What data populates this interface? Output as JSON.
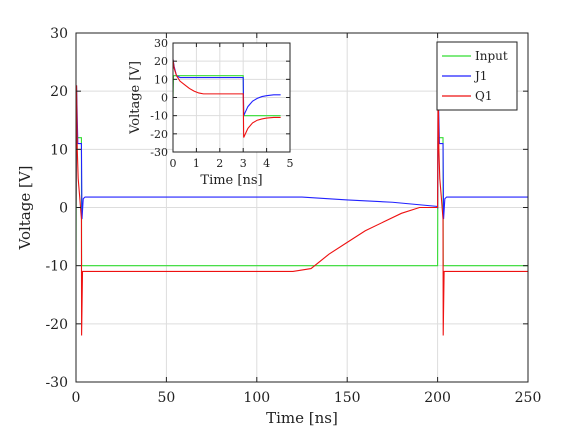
{
  "chart_data": [
    {
      "type": "line",
      "xlabel": "Time [ns]",
      "ylabel": "Voltage [V]",
      "xlim": [
        0,
        250
      ],
      "ylim": [
        -30,
        30
      ],
      "xticks": [
        0,
        50,
        100,
        150,
        200,
        250
      ],
      "yticks": [
        -30,
        -20,
        -10,
        0,
        10,
        20,
        30
      ],
      "grid": true,
      "legend_position": "top-right",
      "series": [
        {
          "name": "Input",
          "color": "#33dd33",
          "x": [
            0,
            0.2,
            3,
            3.1,
            200,
            200.2,
            203,
            203.1,
            250
          ],
          "y": [
            -10,
            12,
            12,
            -10,
            -10,
            12,
            12,
            -10,
            -10
          ]
        },
        {
          "name": "J1",
          "color": "#2222ff",
          "x": [
            0,
            0.3,
            1,
            2,
            3,
            3.3,
            4,
            5,
            100,
            125,
            150,
            175,
            199.5,
            200,
            200.3,
            201,
            202,
            203,
            203.3,
            204,
            205,
            250
          ],
          "y": [
            0,
            21,
            11,
            11,
            11,
            -2,
            1.5,
            1.8,
            1.8,
            1.8,
            1.3,
            0.9,
            0.2,
            0,
            21,
            11,
            11,
            11,
            -2,
            1.5,
            1.8,
            1.8
          ]
        },
        {
          "name": "Q1",
          "color": "#ee1111",
          "x": [
            0,
            0.3,
            0.7,
            1.2,
            2,
            3,
            3.1,
            3.6,
            5,
            50,
            100,
            120,
            130,
            140,
            150,
            160,
            170,
            180,
            190,
            200,
            200.3,
            200.7,
            201.2,
            202,
            203,
            203.1,
            203.6,
            205,
            250
          ],
          "y": [
            0,
            21,
            10,
            5,
            2,
            -2,
            -22,
            -11,
            -11,
            -11,
            -11,
            -11,
            -10.5,
            -8,
            -6,
            -4,
            -2.5,
            -1,
            0,
            0,
            21,
            10,
            5,
            2,
            -2,
            -22,
            -11,
            -11,
            -11
          ]
        }
      ]
    },
    {
      "type": "line",
      "xlabel": "Time [ns]",
      "ylabel": "Voltage [V]",
      "xlim": [
        0,
        5
      ],
      "ylim": [
        -30,
        30
      ],
      "xticks": [
        0,
        1,
        2,
        3,
        4,
        5
      ],
      "yticks": [
        -30,
        -20,
        -10,
        0,
        10,
        20,
        30
      ],
      "grid": true,
      "series": [
        {
          "name": "Input",
          "color": "#33dd33",
          "x": [
            0,
            0.02,
            3,
            3.02,
            4.6
          ],
          "y": [
            0,
            12,
            12,
            -10,
            -10
          ]
        },
        {
          "name": "J1",
          "color": "#2222ff",
          "x": [
            0,
            0.05,
            0.15,
            0.3,
            1,
            2,
            3,
            3.02,
            3.2,
            3.4,
            3.6,
            3.8,
            4,
            4.3,
            4.6
          ],
          "y": [
            21,
            17,
            12,
            11,
            11,
            11,
            11,
            -10,
            -5,
            -2,
            -0.5,
            0.5,
            1,
            1.5,
            1.5
          ],
          "color_note": ""
        },
        {
          "name": "Q1",
          "color": "#ee1111",
          "x": [
            0,
            0.05,
            0.15,
            0.3,
            0.5,
            0.7,
            0.9,
            1.1,
            1.3,
            2,
            3,
            3.02,
            3.2,
            3.4,
            3.6,
            3.8,
            4,
            4.3,
            4.6
          ],
          "y": [
            21,
            16,
            12,
            9,
            7,
            5,
            3.5,
            2.5,
            2,
            2,
            2,
            -22,
            -17,
            -14,
            -12.5,
            -11.8,
            -11.3,
            -11,
            -11
          ]
        }
      ]
    }
  ]
}
